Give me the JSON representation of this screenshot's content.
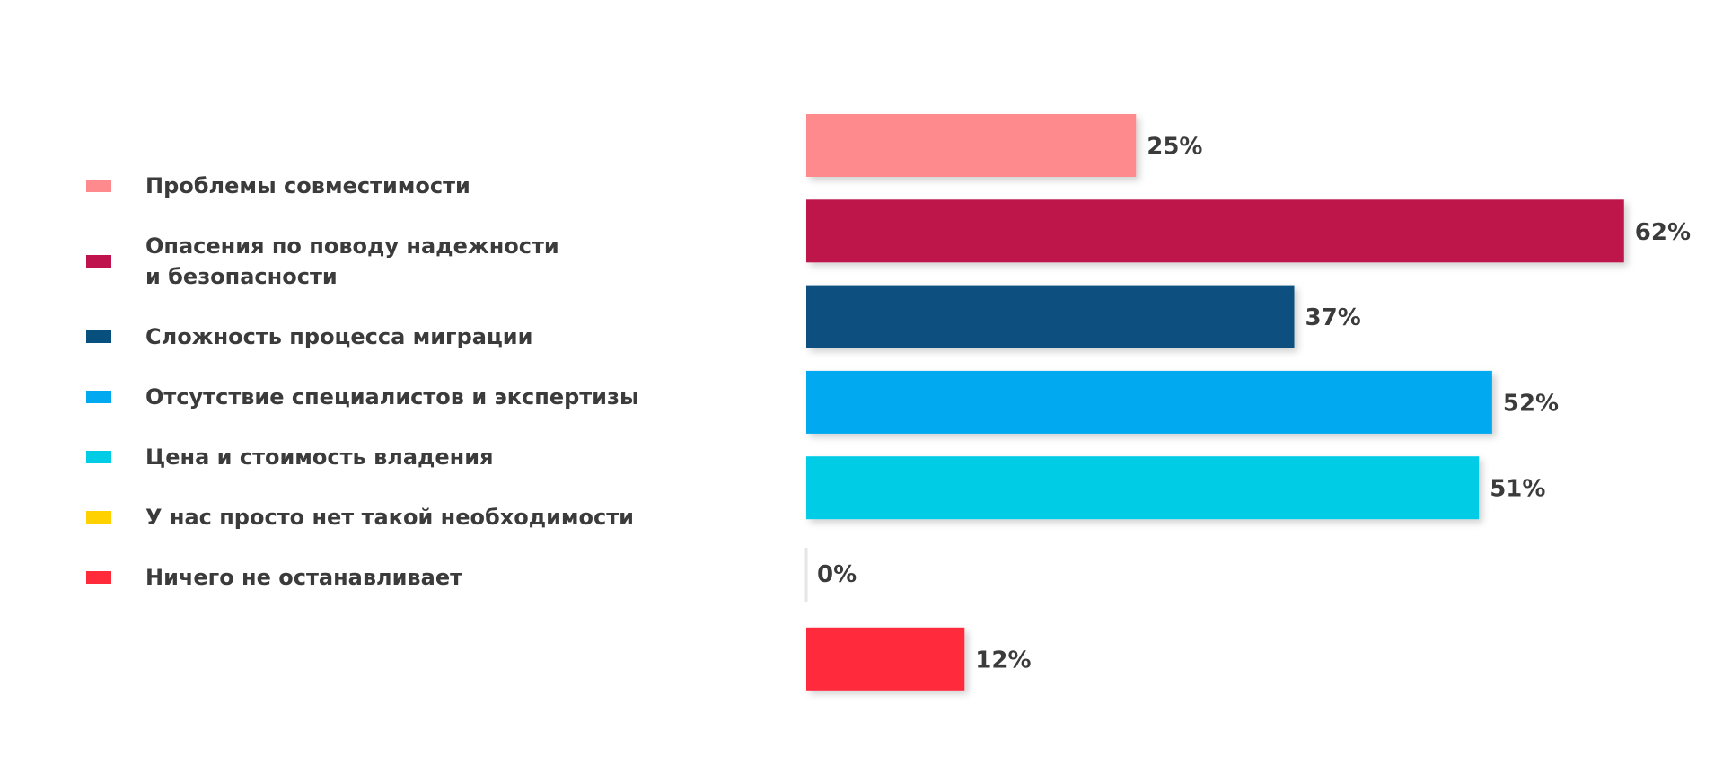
{
  "chart_data": {
    "type": "bar",
    "orientation": "horizontal",
    "categories": [
      "Проблемы совместимости",
      "Опасения по поводу надежности и безопасности",
      "Сложность процесса миграции",
      "Отсутствие специалистов и экспертизы",
      "Цена и стоимость владения",
      "У нас просто нет такой необходимости",
      "Ничего не останавливает"
    ],
    "values": [
      25,
      62,
      37,
      52,
      51,
      0,
      12
    ],
    "value_labels": [
      "25%",
      "62%",
      "37%",
      "52%",
      "51%",
      "0%",
      "12%"
    ],
    "colors": [
      "#ff8a8e",
      "#be134c",
      "#07507e",
      "#00a9f0",
      "#00cce6",
      "#ffd100",
      "#ff2a3a"
    ]
  }
}
